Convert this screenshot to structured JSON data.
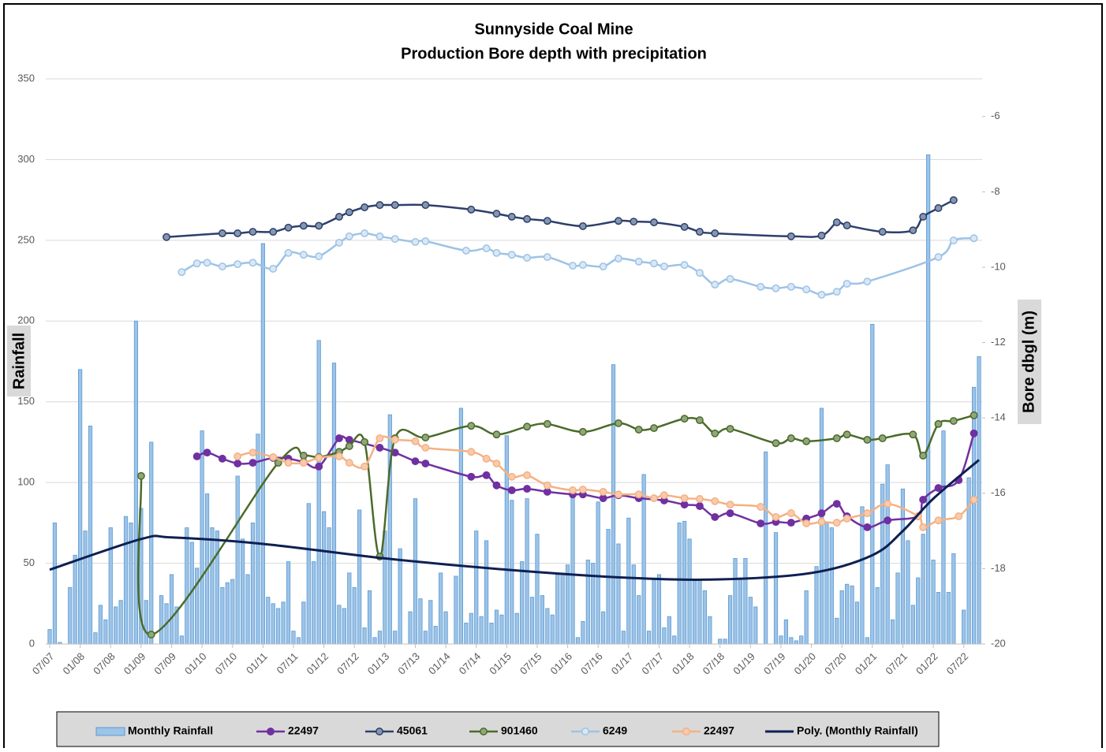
{
  "chart_data": {
    "type": "combo",
    "title": "Sunnyside Coal Mine",
    "subtitle": "Production  Bore depth with precipitation",
    "ylabel": "Rainfall",
    "y2label": "Bore dbgl (m)",
    "xlim": [
      "07/07",
      "10/22"
    ],
    "xticks": [
      "07/07",
      "01/08",
      "07/08",
      "01/09",
      "07/09",
      "01/10",
      "07/10",
      "01/11",
      "07/11",
      "01/12",
      "07/12",
      "01/13",
      "07/13",
      "01/14",
      "07/14",
      "01/15",
      "07/15",
      "01/16",
      "07/16",
      "01/17",
      "07/17",
      "01/18",
      "07/18",
      "01/19",
      "07/19",
      "01/20",
      "07/20",
      "01/21",
      "07/21",
      "01/22",
      "07/22"
    ],
    "ylim": [
      0,
      350
    ],
    "yticks": [
      0,
      50,
      100,
      150,
      200,
      250,
      300,
      350
    ],
    "y2lim": [
      -20,
      -5
    ],
    "y2ticks": [
      -6,
      -8,
      -10,
      -12,
      -14,
      -16,
      -18,
      -20
    ],
    "grid": true,
    "legend": "bottom",
    "series": [
      {
        "name": "Monthly Rainfall",
        "type": "bar",
        "color": "#5b9bd5",
        "fill": "#9dc3e6",
        "x": [
          "07/07",
          "08/07",
          "09/07",
          "10/07",
          "11/07",
          "12/07",
          "01/08",
          "02/08",
          "03/08",
          "04/08",
          "05/08",
          "06/08",
          "07/08",
          "08/08",
          "09/08",
          "10/08",
          "11/08",
          "12/08",
          "01/09",
          "02/09",
          "03/09",
          "04/09",
          "05/09",
          "06/09",
          "07/09",
          "08/09",
          "09/09",
          "10/09",
          "11/09",
          "12/09",
          "01/10",
          "02/10",
          "03/10",
          "04/10",
          "05/10",
          "06/10",
          "07/10",
          "08/10",
          "09/10",
          "10/10",
          "11/10",
          "12/10",
          "01/11",
          "02/11",
          "03/11",
          "04/11",
          "05/11",
          "06/11",
          "07/11",
          "08/11",
          "09/11",
          "10/11",
          "11/11",
          "12/11",
          "01/12",
          "02/12",
          "03/12",
          "04/12",
          "05/12",
          "06/12",
          "07/12",
          "08/12",
          "09/12",
          "10/12",
          "11/12",
          "12/12",
          "01/13",
          "02/13",
          "03/13",
          "04/13",
          "05/13",
          "06/13",
          "07/13",
          "08/13",
          "09/13",
          "10/13",
          "11/13",
          "12/13",
          "01/14",
          "02/14",
          "03/14",
          "04/14",
          "05/14",
          "06/14",
          "07/14",
          "08/14",
          "09/14",
          "10/14",
          "11/14",
          "12/14",
          "01/15",
          "02/15",
          "03/15",
          "04/15",
          "05/15",
          "06/15",
          "07/15",
          "08/15",
          "09/15",
          "10/15",
          "11/15",
          "12/15",
          "01/16",
          "02/16",
          "03/16",
          "04/16",
          "05/16",
          "06/16",
          "07/16",
          "08/16",
          "09/16",
          "10/16",
          "11/16",
          "12/16",
          "01/17",
          "02/17",
          "03/17",
          "04/17",
          "05/17",
          "06/17",
          "07/17",
          "08/17",
          "09/17",
          "10/17",
          "11/17",
          "12/17",
          "01/18",
          "02/18",
          "03/18",
          "04/18",
          "05/18",
          "06/18",
          "07/18",
          "08/18",
          "09/18",
          "10/18",
          "11/18",
          "12/18",
          "01/19",
          "02/19",
          "03/19",
          "04/19",
          "05/19",
          "06/19",
          "07/19",
          "08/19",
          "09/19",
          "10/19",
          "11/19",
          "12/19",
          "01/20",
          "02/20",
          "03/20",
          "04/20",
          "05/20",
          "06/20",
          "07/20",
          "08/20",
          "09/20",
          "10/20",
          "11/20",
          "12/20",
          "01/21",
          "02/21",
          "03/21",
          "04/21",
          "05/21",
          "06/21",
          "07/21",
          "08/21",
          "09/21",
          "10/21",
          "11/21",
          "12/21",
          "01/22",
          "02/22",
          "03/22",
          "04/22",
          "05/22",
          "06/22",
          "07/22",
          "08/22",
          "09/22",
          "10/22"
        ],
        "values": [
          9,
          75,
          1,
          0,
          35,
          55,
          170,
          70,
          135,
          7,
          24,
          15,
          72,
          23,
          27,
          79,
          75,
          200,
          84,
          27,
          125,
          0,
          30,
          25,
          43,
          23,
          5,
          72,
          63,
          47,
          132,
          93,
          72,
          70,
          35,
          38,
          40,
          104,
          65,
          43,
          75,
          130,
          248,
          29,
          25,
          22,
          26,
          51,
          8,
          4,
          26,
          87,
          51,
          188,
          82,
          72,
          174,
          24,
          22,
          44,
          35,
          83,
          10,
          33,
          4,
          8,
          70,
          142,
          8,
          59,
          0,
          20,
          90,
          28,
          8,
          27,
          11,
          44,
          20,
          0,
          42,
          146,
          13,
          19,
          70,
          17,
          64,
          13,
          21,
          18,
          129,
          89,
          19,
          51,
          90,
          29,
          68,
          30,
          22,
          18,
          43,
          44,
          49,
          92,
          4,
          14,
          52,
          50,
          88,
          20,
          71,
          173,
          62,
          8,
          78,
          49,
          30,
          105,
          8,
          40,
          43,
          10,
          17,
          5,
          75,
          76,
          65,
          40,
          40,
          33,
          17,
          0,
          3,
          3,
          30,
          53,
          41,
          53,
          29,
          23,
          0,
          119,
          0,
          69,
          5,
          15,
          4,
          2,
          5,
          33,
          0,
          48,
          146,
          75,
          72,
          16,
          33,
          37,
          36,
          26,
          85,
          4,
          198,
          35,
          99,
          111,
          15,
          44,
          96,
          64,
          24,
          41,
          68,
          303,
          52,
          32,
          132,
          32,
          56,
          0,
          21,
          103,
          159,
          178
        ]
      },
      {
        "name": "22497",
        "type": "line",
        "axis": "y2",
        "color": "#7030a0",
        "marker_fill": "#7030a0",
        "x": [
          "12/09",
          "02/10",
          "05/10",
          "08/10",
          "11/10",
          "03/11",
          "06/11",
          "09/11",
          "12/11",
          "04/12",
          "06/12",
          "12/12",
          "03/13",
          "07/13",
          "09/13",
          "06/14",
          "09/14",
          "11/14",
          "02/15",
          "05/15",
          "09/15",
          "02/16",
          "04/16",
          "08/16",
          "11/16",
          "03/17",
          "08/17",
          "12/17",
          "03/18",
          "06/18",
          "09/18",
          "03/19",
          "06/19",
          "09/19",
          "12/19",
          "03/20",
          "06/20",
          "08/20",
          "12/20",
          "04/21",
          "10/21",
          "11/21",
          "02/22",
          "06/22",
          "09/22"
        ],
        "values": [
          -15.02,
          -14.92,
          -15.08,
          -15.21,
          -15.19,
          -15.06,
          -15.08,
          -15.17,
          -15.29,
          -14.54,
          -14.58,
          -14.79,
          -14.92,
          -15.15,
          -15.21,
          -15.56,
          -15.52,
          -15.79,
          -15.92,
          -15.88,
          -15.96,
          -16.03,
          -16.03,
          -16.13,
          -16.05,
          -16.13,
          -16.19,
          -16.3,
          -16.34,
          -16.63,
          -16.53,
          -16.8,
          -16.76,
          -16.78,
          -16.67,
          -16.53,
          -16.28,
          -16.61,
          -16.9,
          -16.72,
          -16.61,
          -16.17,
          -15.86,
          -15.65,
          -14.41
        ]
      },
      {
        "name": "45061",
        "type": "line",
        "axis": "y2",
        "color": "#2f3f6b",
        "marker_fill": "#8497b0",
        "x": [
          "06/09",
          "05/10",
          "08/10",
          "11/10",
          "03/11",
          "06/11",
          "09/11",
          "12/11",
          "04/12",
          "06/12",
          "09/12",
          "12/12",
          "03/13",
          "09/13",
          "06/14",
          "11/14",
          "02/15",
          "05/15",
          "09/15",
          "04/16",
          "11/16",
          "02/17",
          "06/17",
          "12/17",
          "03/18",
          "06/18",
          "09/19",
          "03/20",
          "06/20",
          "08/20",
          "03/21",
          "09/21",
          "11/21",
          "02/22",
          "05/22"
        ],
        "values": [
          -9.2,
          -9.1,
          -9.1,
          -9.06,
          -9.06,
          -8.95,
          -8.9,
          -8.9,
          -8.66,
          -8.54,
          -8.41,
          -8.35,
          -8.35,
          -8.35,
          -8.47,
          -8.58,
          -8.66,
          -8.72,
          -8.77,
          -8.91,
          -8.77,
          -8.79,
          -8.81,
          -8.93,
          -9.06,
          -9.1,
          -9.18,
          -9.16,
          -8.81,
          -8.89,
          -9.06,
          -9.02,
          -8.66,
          -8.43,
          -8.22
        ]
      },
      {
        "name": "901460",
        "type": "line",
        "axis": "y2",
        "color": "#4b6b2a",
        "marker_fill": "#8fa77a",
        "x": [
          "01/09",
          "03/09",
          "04/11",
          "09/11",
          "12/11",
          "04/12",
          "06/12",
          "09/12",
          "12/12",
          "03/13",
          "09/13",
          "06/14",
          "11/14",
          "05/15",
          "09/15",
          "04/16",
          "11/16",
          "03/17",
          "06/17",
          "12/17",
          "03/18",
          "06/18",
          "09/18",
          "06/19",
          "09/19",
          "12/19",
          "06/20",
          "08/20",
          "12/20",
          "03/21",
          "09/21",
          "11/21",
          "02/22",
          "05/22",
          "09/22"
        ],
        "values": [
          -15.54,
          -19.75,
          -15.19,
          -15.0,
          -15.04,
          -14.9,
          -14.75,
          -14.64,
          -17.68,
          -14.54,
          -14.52,
          -14.21,
          -14.44,
          -14.23,
          -14.16,
          -14.37,
          -14.14,
          -14.31,
          -14.27,
          -14.02,
          -14.06,
          -14.41,
          -14.29,
          -14.67,
          -14.54,
          -14.62,
          -14.54,
          -14.44,
          -14.58,
          -14.54,
          -14.44,
          -15.0,
          -14.16,
          -14.08,
          -13.93
        ]
      },
      {
        "name": "6249",
        "type": "line",
        "axis": "y2",
        "color": "#9dc3e6",
        "marker_fill": "#dae8f5",
        "x": [
          "09/09",
          "12/09",
          "02/10",
          "05/10",
          "08/10",
          "11/10",
          "03/11",
          "06/11",
          "09/11",
          "12/11",
          "04/12",
          "06/12",
          "09/12",
          "12/12",
          "03/13",
          "07/13",
          "09/13",
          "05/14",
          "09/14",
          "11/14",
          "02/15",
          "05/15",
          "09/15",
          "02/16",
          "04/16",
          "08/16",
          "11/16",
          "03/17",
          "06/17",
          "08/17",
          "12/17",
          "03/18",
          "06/18",
          "09/18",
          "03/19",
          "06/19",
          "09/19",
          "12/19",
          "03/20",
          "06/20",
          "08/20",
          "12/20",
          "02/22",
          "05/22",
          "09/22"
        ],
        "values": [
          -10.13,
          -9.9,
          -9.88,
          -9.98,
          -9.92,
          -9.88,
          -10.04,
          -9.62,
          -9.67,
          -9.71,
          -9.35,
          -9.18,
          -9.1,
          -9.18,
          -9.25,
          -9.33,
          -9.31,
          -9.56,
          -9.5,
          -9.62,
          -9.67,
          -9.75,
          -9.73,
          -9.96,
          -9.94,
          -9.98,
          -9.77,
          -9.85,
          -9.9,
          -9.98,
          -9.94,
          -10.15,
          -10.46,
          -10.31,
          -10.52,
          -10.56,
          -10.52,
          -10.59,
          -10.73,
          -10.65,
          -10.44,
          -10.38,
          -9.73,
          -9.29,
          -9.23
        ]
      },
      {
        "name": "22497",
        "type": "line",
        "axis": "y2",
        "color": "#f4b183",
        "marker_fill": "#f8cbad",
        "x": [
          "08/10",
          "11/10",
          "03/11",
          "06/11",
          "09/11",
          "12/11",
          "04/12",
          "06/12",
          "09/12",
          "12/12",
          "03/13",
          "07/13",
          "09/13",
          "06/14",
          "09/14",
          "11/14",
          "02/15",
          "05/15",
          "09/15",
          "02/16",
          "04/16",
          "08/16",
          "11/16",
          "03/17",
          "06/17",
          "08/17",
          "12/17",
          "03/18",
          "06/18",
          "09/18",
          "03/19",
          "06/19",
          "09/19",
          "12/19",
          "03/20",
          "06/20",
          "08/20",
          "12/20",
          "04/21",
          "10/21",
          "11/21",
          "02/22",
          "06/22",
          "09/22"
        ],
        "values": [
          -15.02,
          -14.92,
          -15.04,
          -15.19,
          -15.19,
          -15.06,
          -15.02,
          -15.19,
          -15.29,
          -14.54,
          -14.58,
          -14.62,
          -14.79,
          -14.9,
          -15.08,
          -15.21,
          -15.56,
          -15.52,
          -15.79,
          -15.92,
          -15.9,
          -15.96,
          -16.03,
          -16.03,
          -16.13,
          -16.05,
          -16.13,
          -16.15,
          -16.21,
          -16.3,
          -16.36,
          -16.63,
          -16.53,
          -16.8,
          -16.76,
          -16.78,
          -16.67,
          -16.53,
          -16.28,
          -16.61,
          -16.9,
          -16.72,
          -16.61,
          -16.17
        ]
      },
      {
        "name": "Poly. (Monthly Rainfall)",
        "type": "line",
        "axis": "y",
        "color": "#0e1f52",
        "marker": false,
        "x": [
          "07/07",
          "01/09",
          "07/09",
          "01/11",
          "01/13",
          "01/15",
          "01/17",
          "07/18",
          "01/20",
          "01/21",
          "07/21",
          "01/22",
          "10/22"
        ],
        "values": [
          46,
          65,
          66,
          62,
          53,
          46,
          41,
          40,
          44,
          55,
          70,
          90,
          114
        ]
      }
    ]
  }
}
